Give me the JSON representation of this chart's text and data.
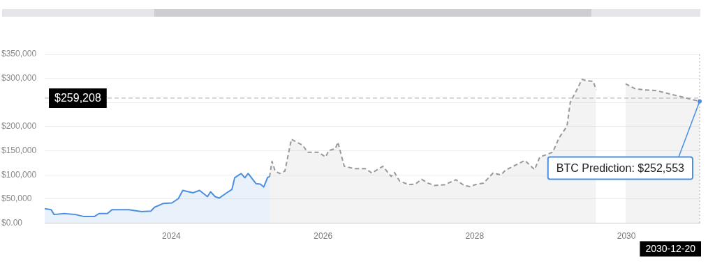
{
  "chart_data": {
    "type": "area",
    "xlim": [
      "2022-05-01",
      "2030-12-20"
    ],
    "xticks": [
      "2024",
      "2026",
      "2028",
      "2030"
    ],
    "ylim": [
      0,
      350000
    ],
    "yticks": [
      {
        "value": 0,
        "label": "$0.00"
      },
      {
        "value": 50000,
        "label": "$50,000"
      },
      {
        "value": 100000,
        "label": "$100,000"
      },
      {
        "value": 150000,
        "label": "$150,000"
      },
      {
        "value": 200000,
        "label": "$200,000"
      },
      {
        "value": 250000,
        "label": null
      },
      {
        "value": 300000,
        "label": "$300,000"
      },
      {
        "value": 350000,
        "label": "$350,000"
      }
    ],
    "grid": "y",
    "legend": false,
    "marker": "none",
    "series": [
      {
        "color": "#4a8fe0",
        "line_style": "solid",
        "x": [
          "2022-05-01",
          "2022-06-01",
          "2022-06-15",
          "2022-08-03",
          "2022-09-25",
          "2022-11-04",
          "2022-12-27",
          "2023-01-18",
          "2023-02-27",
          "2023-03-21",
          "2023-06-10",
          "2023-08-11",
          "2023-09-24",
          "2023-10-12",
          "2023-11-24",
          "2024-01-04",
          "2024-02-04",
          "2024-02-25",
          "2024-04-15",
          "2024-05-16",
          "2024-06-23",
          "2024-07-08",
          "2024-07-30",
          "2024-08-18",
          "2024-10-01",
          "2024-10-19",
          "2024-11-01",
          "2024-12-02",
          "2024-12-20",
          "2025-01-05",
          "2025-02-12",
          "2025-03-05",
          "2025-03-21",
          "2025-04-09",
          "2025-04-18"
        ],
        "values": [
          30000,
          28000,
          18000,
          20000,
          18000,
          14000,
          14000,
          20000,
          20000,
          28000,
          28000,
          24000,
          25000,
          33000,
          41000,
          42000,
          51000,
          68000,
          63000,
          68000,
          55000,
          65000,
          55000,
          52000,
          65000,
          70000,
          94000,
          103000,
          94000,
          103000,
          82000,
          81000,
          75000,
          95000,
          96000
        ]
      },
      {
        "color": "#999999",
        "line_style": "dashed",
        "x": [
          "2025-04-18",
          "2025-04-30",
          "2025-05-15",
          "2025-06-06",
          "2025-07-01",
          "2025-08-01",
          "2025-09-26",
          "2025-10-18",
          "2025-12-10",
          "2026-01-13",
          "2026-01-29",
          "2026-03-01",
          "2026-03-13",
          "2026-04-13",
          "2026-06-01",
          "2026-07-24",
          "2026-08-24",
          "2026-10-16",
          "2026-11-25",
          "2026-12-11",
          "2027-01-05",
          "2027-02-18",
          "2027-03-21",
          "2027-04-21",
          "2027-05-22",
          "2027-06-22",
          "2027-08-11",
          "2027-10-03",
          "2027-11-12",
          "2027-12-10",
          "2028-01-13",
          "2028-02-13",
          "2028-03-30",
          "2028-05-07",
          "2028-05-29",
          "2028-08-30",
          "2028-10-16",
          "2028-11-10",
          "2029-01-11",
          "2029-02-11",
          "2029-03-21",
          "2029-04-06",
          "2029-05-07",
          "2029-06-01",
          "2029-06-25",
          "2029-07-26",
          "2029-08-08",
          "2029-10-18",
          "2029-12-28",
          "2030-02-10",
          "2030-03-31",
          "2030-05-23",
          "2030-12-20"
        ],
        "values": [
          96000,
          128000,
          108000,
          103000,
          108000,
          174000,
          161000,
          147000,
          147000,
          137000,
          151000,
          154000,
          168000,
          118000,
          113000,
          113000,
          104000,
          118000,
          97000,
          105000,
          87000,
          80000,
          81000,
          91000,
          83000,
          78000,
          80000,
          90000,
          78000,
          76000,
          81000,
          83000,
          104000,
          100000,
          110000,
          130000,
          111000,
          137000,
          147000,
          177000,
          201000,
          251000,
          276000,
          298000,
          295000,
          294000,
          276000,
          null,
          289000,
          279000,
          276000,
          275000,
          252553
        ]
      }
    ],
    "ref_lines": [
      {
        "axis": "y",
        "value": 259208,
        "label": "$259,208",
        "line_style": "dashed",
        "color": "#aaaaaa"
      },
      {
        "axis": "x",
        "value": "2030-12-20",
        "label": "2030-12-20",
        "line_style": "dotted",
        "color": "#aaaaaa"
      }
    ],
    "annotations": [
      {
        "text": "BTC Prediction: $252,553",
        "x": "2030-12-20",
        "y": 252553
      }
    ]
  }
}
